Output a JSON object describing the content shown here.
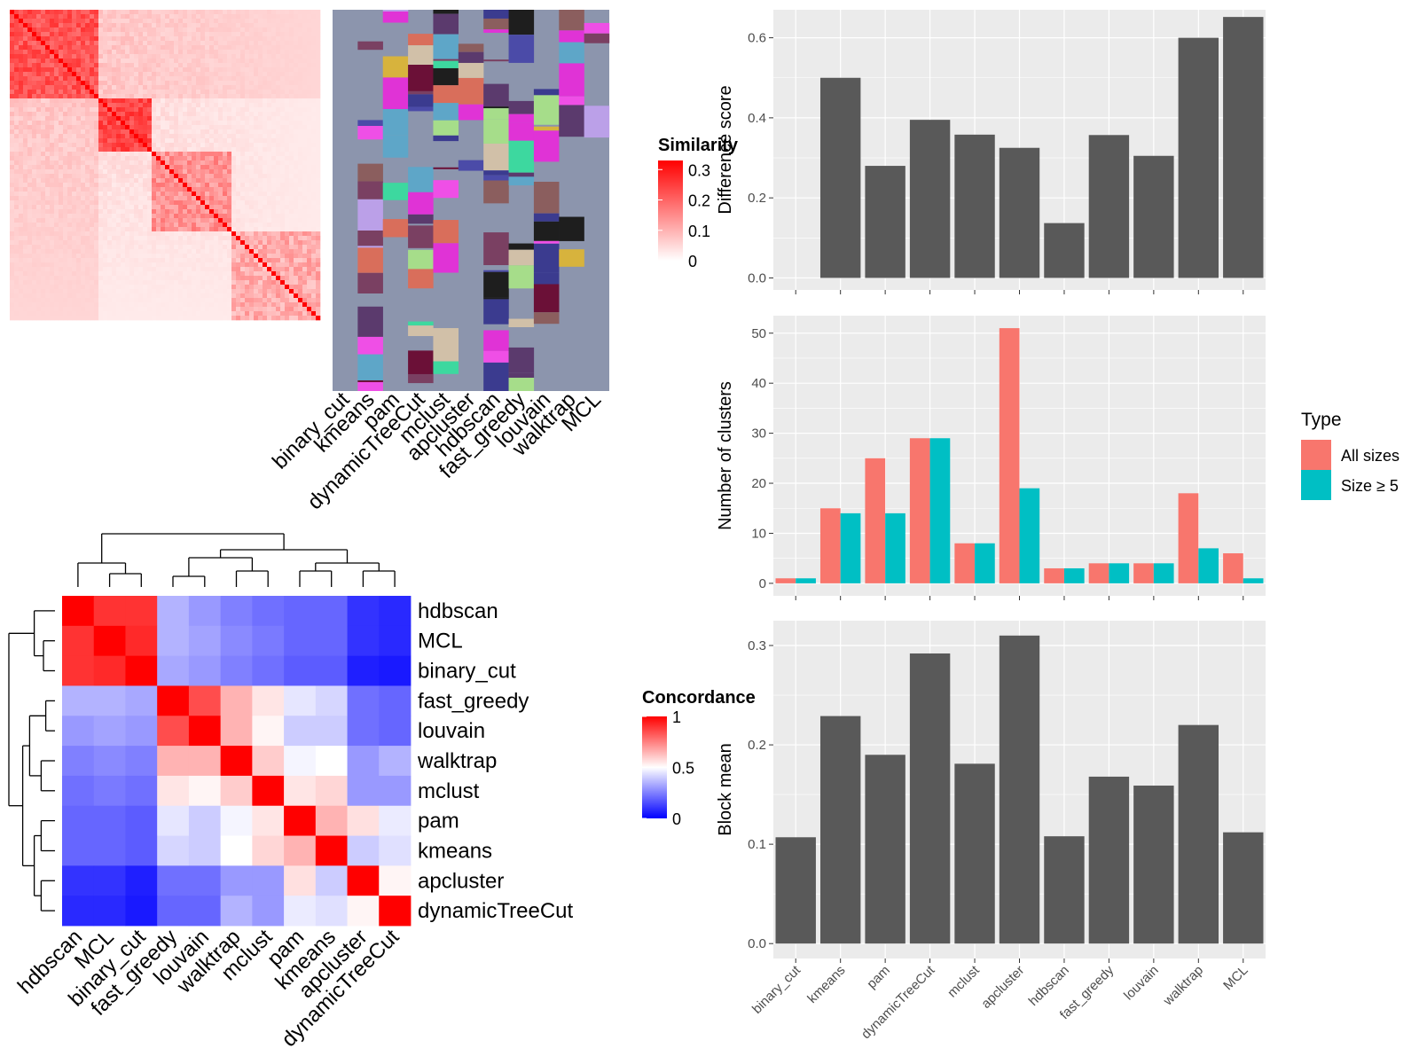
{
  "colors": {
    "panel_bg": "#ebebeb",
    "grid": "#ffffff",
    "bar_gray": "#595959",
    "all_sizes": "#F8766D",
    "size_ge5": "#00BFC4",
    "sim_high": "#ff0000",
    "sim_low": "#ffffff",
    "conc_low": "#0000ff",
    "conc_mid": "#ffffff",
    "conc_high": "#ff0000",
    "annotation_bg": "#8c95ad",
    "dendro_line": "#000000"
  },
  "similarity_legend": {
    "title": "Similarity",
    "ticks": [
      "0.3",
      "0.2",
      "0.1",
      "0"
    ],
    "values": [
      0.3,
      0.2,
      0.1,
      0
    ]
  },
  "annotation_columns": [
    "binary_cut",
    "kmeans",
    "pam",
    "dynamicTreeCut",
    "mclust",
    "apcluster",
    "hdbscan",
    "fast_greedy",
    "louvain",
    "walktrap",
    "MCL"
  ],
  "concordance_legend": {
    "title": "Concordance",
    "ticks": [
      "1",
      "0.5",
      "0"
    ],
    "values": [
      1,
      0.5,
      0
    ]
  },
  "concordance_labels": [
    "hdbscan",
    "MCL",
    "binary_cut",
    "fast_greedy",
    "louvain",
    "walktrap",
    "mclust",
    "pam",
    "kmeans",
    "apcluster",
    "dynamicTreeCut"
  ],
  "concordance_matrix": [
    [
      1.0,
      0.9,
      0.9,
      0.35,
      0.3,
      0.25,
      0.22,
      0.2,
      0.2,
      0.1,
      0.08
    ],
    [
      0.9,
      1.0,
      0.92,
      0.35,
      0.32,
      0.27,
      0.24,
      0.2,
      0.2,
      0.1,
      0.08
    ],
    [
      0.9,
      0.92,
      1.0,
      0.33,
      0.3,
      0.25,
      0.22,
      0.18,
      0.18,
      0.06,
      0.05
    ],
    [
      0.35,
      0.35,
      0.33,
      1.0,
      0.85,
      0.65,
      0.55,
      0.45,
      0.42,
      0.22,
      0.2
    ],
    [
      0.3,
      0.32,
      0.3,
      0.85,
      1.0,
      0.65,
      0.52,
      0.4,
      0.4,
      0.22,
      0.2
    ],
    [
      0.25,
      0.27,
      0.25,
      0.65,
      0.65,
      1.0,
      0.6,
      0.48,
      0.5,
      0.3,
      0.35
    ],
    [
      0.22,
      0.24,
      0.22,
      0.55,
      0.52,
      0.6,
      1.0,
      0.55,
      0.58,
      0.3,
      0.3
    ],
    [
      0.2,
      0.2,
      0.18,
      0.45,
      0.4,
      0.48,
      0.55,
      1.0,
      0.65,
      0.56,
      0.46
    ],
    [
      0.2,
      0.2,
      0.18,
      0.42,
      0.4,
      0.5,
      0.58,
      0.65,
      1.0,
      0.4,
      0.44
    ],
    [
      0.1,
      0.1,
      0.06,
      0.22,
      0.22,
      0.3,
      0.3,
      0.56,
      0.4,
      1.0,
      0.52
    ],
    [
      0.08,
      0.08,
      0.05,
      0.2,
      0.2,
      0.35,
      0.3,
      0.46,
      0.44,
      0.52,
      1.0
    ]
  ],
  "chart_data": [
    {
      "type": "bar",
      "categories": [
        "binary_cut",
        "kmeans",
        "pam",
        "dynamicTreeCut",
        "mclust",
        "apcluster",
        "hdbscan",
        "fast_greedy",
        "louvain",
        "walktrap",
        "MCL"
      ],
      "values": [
        0.0,
        0.5,
        0.28,
        0.395,
        0.358,
        0.325,
        0.137,
        0.357,
        0.305,
        0.6,
        0.652
      ],
      "title": "",
      "xlabel": "",
      "ylabel": "Difference score",
      "ylim": [
        -0.03,
        0.67
      ],
      "yticks": [
        0.0,
        0.2,
        0.4,
        0.6
      ],
      "ytick_labels": [
        "0.0",
        "0.2",
        "0.4",
        "0.6"
      ],
      "show_x_labels": false,
      "grid": true
    },
    {
      "type": "bar",
      "categories": [
        "binary_cut",
        "kmeans",
        "pam",
        "dynamicTreeCut",
        "mclust",
        "apcluster",
        "hdbscan",
        "fast_greedy",
        "louvain",
        "walktrap",
        "MCL"
      ],
      "series": [
        {
          "name": "All sizes",
          "values": [
            1,
            15,
            25,
            29,
            8,
            51,
            3,
            4,
            4,
            18,
            6
          ]
        },
        {
          "name": "Size ≥ 5",
          "values": [
            1,
            14,
            14,
            29,
            8,
            19,
            3,
            4,
            4,
            7,
            1
          ]
        }
      ],
      "title": "",
      "xlabel": "",
      "ylabel": "Number of clusters",
      "ylim": [
        -2.5,
        53.5
      ],
      "yticks": [
        0,
        10,
        20,
        30,
        40,
        50
      ],
      "ytick_labels": [
        "0",
        "10",
        "20",
        "30",
        "40",
        "50"
      ],
      "legend": {
        "title": "Type",
        "position": "right"
      },
      "show_x_labels": false,
      "grid": true
    },
    {
      "type": "bar",
      "categories": [
        "binary_cut",
        "kmeans",
        "pam",
        "dynamicTreeCut",
        "mclust",
        "apcluster",
        "hdbscan",
        "fast_greedy",
        "louvain",
        "walktrap",
        "MCL"
      ],
      "values": [
        0.107,
        0.229,
        0.19,
        0.292,
        0.181,
        0.31,
        0.108,
        0.168,
        0.159,
        0.22,
        0.112
      ],
      "title": "",
      "xlabel": "",
      "ylabel": "Block mean",
      "ylim": [
        -0.015,
        0.325
      ],
      "yticks": [
        0.0,
        0.1,
        0.2,
        0.3
      ],
      "ytick_labels": [
        "0.0",
        "0.1",
        "0.2",
        "0.3"
      ],
      "show_x_labels": true,
      "grid": true
    }
  ]
}
